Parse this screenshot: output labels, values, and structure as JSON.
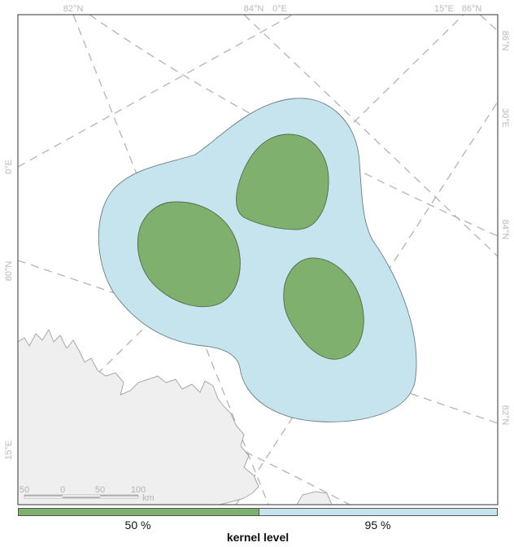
{
  "map": {
    "graticule_labels": {
      "top": [
        "82°N",
        "84°N",
        "0°E",
        "15°E",
        "86°N"
      ],
      "left": [
        "0°E",
        "80°N",
        "15°E"
      ],
      "right": [
        "86°N",
        "30°E",
        "84°N",
        "82°N"
      ]
    },
    "scale_bar": {
      "ticks": [
        "50",
        "0",
        "50",
        "100"
      ],
      "unit": "km"
    }
  },
  "legend": {
    "title": "kernel level",
    "items": [
      {
        "label": "50 %",
        "color": "#7fb06d"
      },
      {
        "label": "95 %",
        "color": "#c5e4ee"
      }
    ]
  }
}
